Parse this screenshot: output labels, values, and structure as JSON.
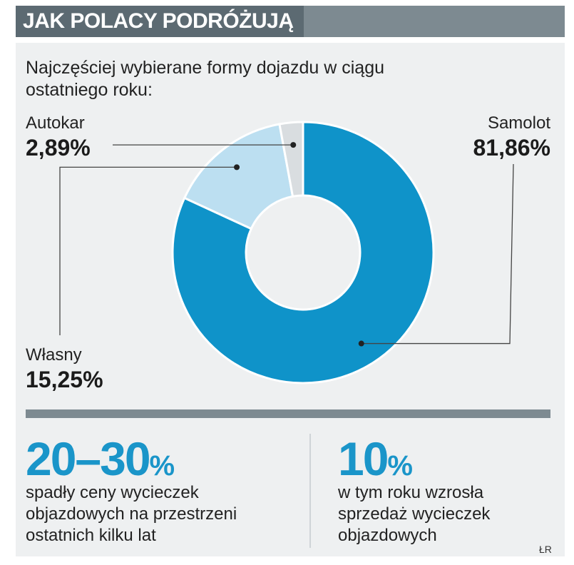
{
  "header": {
    "title": "JAK POLACY PODRÓŻUJĄ"
  },
  "subtitle": "Najczęściej wybierane formy dojazdu w ciągu ostatniego roku:",
  "chart_data": {
    "type": "pie",
    "variant": "donut",
    "title": "Najczęściej wybierane formy dojazdu w ciągu ostatniego roku:",
    "slices": [
      {
        "label": "Samolot",
        "value": 81.86,
        "display": "81,86%",
        "color": "#0f93c9"
      },
      {
        "label": "Własny",
        "value": 15.25,
        "display": "15,25%",
        "color": "#bcdff1"
      },
      {
        "label": "Autokar",
        "value": 2.89,
        "display": "2,89%",
        "color": "#d9dde0"
      }
    ]
  },
  "stats": [
    {
      "value": "20–30",
      "unit": "%",
      "text": [
        "spadły ceny wycieczek",
        "objazdowych na przestrzeni",
        "ostatnich kilku lat"
      ]
    },
    {
      "value": "10",
      "unit": "%",
      "text": [
        "w tym roku wzrosła",
        "sprzedaż wycieczek",
        "objazdowych"
      ]
    }
  ],
  "credit": "ŁR"
}
